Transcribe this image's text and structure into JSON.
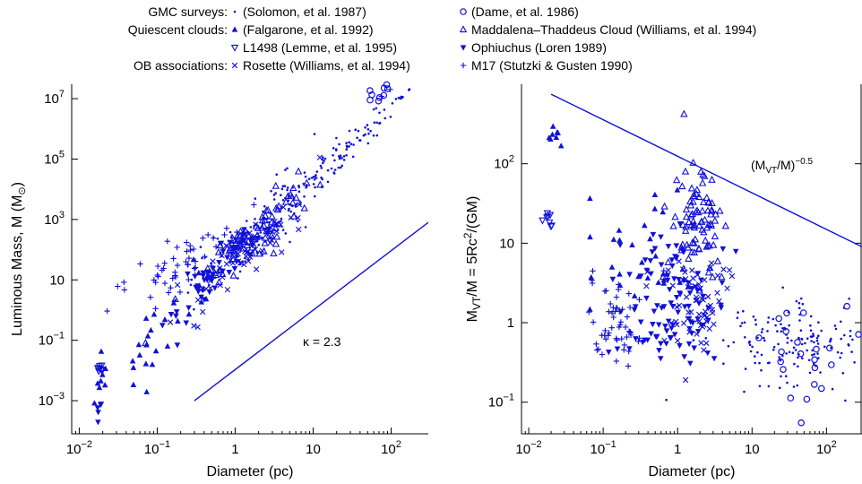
{
  "legend": {
    "groups": [
      {
        "title": "GMC surveys:",
        "entries": [
          {
            "marker": "dot",
            "label": "(Solomon, et al. 1987)"
          },
          {
            "marker": "circle",
            "label": "(Dame, et al. 1986)"
          }
        ]
      },
      {
        "title": "Quiescent clouds:",
        "entries": [
          {
            "marker": "triangle-up-filled",
            "label": "(Falgarone, et al. 1992)"
          },
          {
            "marker": "triangle-up-open",
            "label": "Maddalena–Thaddeus Cloud (Williams, et al. 1994)"
          },
          {
            "marker": "triangle-down-open",
            "label": "L1498 (Lemme, et al. 1995)"
          },
          {
            "marker": "triangle-down-filled",
            "label": "Ophiuchus (Loren 1989)"
          }
        ]
      },
      {
        "title": "OB associations:",
        "entries": [
          {
            "marker": "cross-x",
            "label": "Rosette (Williams, et al. 1994)"
          },
          {
            "marker": "plus",
            "label": "M17 (Stutzki & Gusten 1990)"
          }
        ]
      }
    ]
  },
  "colors": {
    "marker": "#1010d8",
    "axis": "#000000"
  },
  "chart_data": [
    {
      "type": "scatter",
      "xlabel": "Diameter (pc)",
      "ylabel": "Luminous Mass, M (M⊙)",
      "xscale": "log",
      "yscale": "log",
      "xlim": [
        0.008,
        300
      ],
      "ylim": [
        8e-05,
        30000000
      ],
      "xticks": [
        {
          "value": 0.01,
          "label": "10",
          "exp": "−2"
        },
        {
          "value": 0.1,
          "label": "10",
          "exp": "−1"
        },
        {
          "value": 1,
          "label": "1",
          "exp": ""
        },
        {
          "value": 10,
          "label": "10",
          "exp": ""
        },
        {
          "value": 100,
          "label": "10",
          "exp": "2"
        }
      ],
      "yticks": [
        {
          "value": 0.001,
          "label": "10",
          "exp": "−3"
        },
        {
          "value": 0.1,
          "label": "10",
          "exp": "−1"
        },
        {
          "value": 10,
          "label": "10",
          "exp": ""
        },
        {
          "value": 1000,
          "label": "10",
          "exp": "3"
        },
        {
          "value": 100000,
          "label": "10",
          "exp": "5"
        },
        {
          "value": 10000000,
          "label": "10",
          "exp": "7"
        }
      ],
      "line": {
        "label": "κ = 2.3",
        "points": [
          [
            0.3,
            0.001
          ],
          [
            300,
            800
          ]
        ]
      },
      "series": [
        {
          "marker": "dot",
          "clusters": [
            {
              "cx": 1.8,
              "cy": 2.6,
              "sx": 0.45,
              "sy": 0.55,
              "n": 130,
              "slope": 2.3
            },
            {
              "cx": 30,
              "cy": 5.4,
              "sx": 0.45,
              "sy": 0.25,
              "n": 90,
              "slope": 2.3
            }
          ]
        },
        {
          "marker": "circle",
          "clusters": [
            {
              "cx": 80,
              "cy": 7.3,
              "sx": 0.15,
              "sy": 0.2,
              "n": 12,
              "slope": 2.3
            }
          ]
        },
        {
          "marker": "triangle-up-filled",
          "clusters": [
            {
              "cx": 0.15,
              "cy": -0.2,
              "sx": 0.35,
              "sy": 0.6,
              "n": 28,
              "slope": 2.3
            },
            {
              "cx": 0.018,
              "cy": -2.6,
              "sx": 0.05,
              "sy": 0.6,
              "n": 6,
              "slope": 0
            }
          ]
        },
        {
          "marker": "triangle-up-open",
          "clusters": [
            {
              "cx": 1.8,
              "cy": 2.4,
              "sx": 0.35,
              "sy": 0.45,
              "n": 80,
              "slope": 2.3
            }
          ]
        },
        {
          "marker": "triangle-down-open",
          "clusters": [
            {
              "cx": 0.018,
              "cy": -1.9,
              "sx": 0.04,
              "sy": 0.15,
              "n": 8,
              "slope": 0
            }
          ]
        },
        {
          "marker": "triangle-down-filled",
          "clusters": [
            {
              "cx": 0.5,
              "cy": 1.1,
              "sx": 0.35,
              "sy": 0.5,
              "n": 45,
              "slope": 2.3
            },
            {
              "cx": 0.018,
              "cy": -3.3,
              "sx": 0.03,
              "sy": 0.15,
              "n": 5,
              "slope": 0
            }
          ]
        },
        {
          "marker": "cross-x",
          "clusters": [
            {
              "cx": 1.2,
              "cy": 1.8,
              "sx": 0.35,
              "sy": 0.45,
              "n": 70,
              "slope": 2.3
            }
          ]
        },
        {
          "marker": "plus",
          "clusters": [
            {
              "cx": 0.25,
              "cy": 1.7,
              "sx": 0.4,
              "sy": 0.45,
              "n": 55,
              "slope": 1.5
            },
            {
              "cx": 80,
              "cy": 7.0,
              "sx": 0.1,
              "sy": 0.3,
              "n": 4,
              "slope": 2.3
            }
          ]
        }
      ]
    },
    {
      "type": "scatter",
      "xlabel": "Diameter (pc)",
      "ylabel": "M_VT/M = 5Rc²/(GM)",
      "xscale": "log",
      "yscale": "log",
      "xlim": [
        0.008,
        300
      ],
      "ylim": [
        0.04,
        1000
      ],
      "xticks": [
        {
          "value": 0.01,
          "label": "10",
          "exp": "−2"
        },
        {
          "value": 0.1,
          "label": "10",
          "exp": "−1"
        },
        {
          "value": 1,
          "label": "1",
          "exp": ""
        },
        {
          "value": 10,
          "label": "10",
          "exp": ""
        },
        {
          "value": 100,
          "label": "10",
          "exp": "2"
        }
      ],
      "yticks": [
        {
          "value": 0.1,
          "label": "10",
          "exp": "−1"
        },
        {
          "value": 1,
          "label": "1",
          "exp": ""
        },
        {
          "value": 10,
          "label": "10",
          "exp": ""
        },
        {
          "value": 100,
          "label": "10",
          "exp": "2"
        }
      ],
      "line": {
        "label": "(M_VT/M)^−0.5",
        "points": [
          [
            0.02,
            750
          ],
          [
            300,
            9
          ]
        ]
      },
      "series": [
        {
          "marker": "dot",
          "clusters": [
            {
              "cx": 30,
              "cy": -0.3,
              "sx": 0.5,
              "sy": 0.25,
              "n": 150,
              "slope": 0
            }
          ]
        },
        {
          "marker": "circle",
          "clusters": [
            {
              "cx": 60,
              "cy": -0.45,
              "sx": 0.35,
              "sy": 0.3,
              "n": 22,
              "slope": 0
            }
          ]
        },
        {
          "marker": "triangle-up-filled",
          "clusters": [
            {
              "cx": 0.3,
              "cy": 0.9,
              "sx": 0.35,
              "sy": 0.35,
              "n": 30,
              "slope": 0
            },
            {
              "cx": 0.022,
              "cy": 2.3,
              "sx": 0.06,
              "sy": 0.1,
              "n": 8,
              "slope": 0
            }
          ]
        },
        {
          "marker": "triangle-up-open",
          "clusters": [
            {
              "cx": 1.8,
              "cy": 1.3,
              "sx": 0.2,
              "sy": 0.4,
              "n": 90,
              "slope": 0
            }
          ]
        },
        {
          "marker": "triangle-down-open",
          "clusters": [
            {
              "cx": 0.018,
              "cy": 1.3,
              "sx": 0.04,
              "sy": 0.15,
              "n": 8,
              "slope": 0
            }
          ]
        },
        {
          "marker": "triangle-down-filled",
          "clusters": [
            {
              "cx": 0.8,
              "cy": 0.45,
              "sx": 0.3,
              "sy": 0.35,
              "n": 60,
              "slope": 0
            },
            {
              "cx": 0.8,
              "cy": 0.0,
              "sx": 0.3,
              "sy": 0.25,
              "n": 40,
              "slope": 0
            }
          ]
        },
        {
          "marker": "cross-x",
          "clusters": [
            {
              "cx": 1.8,
              "cy": 0.2,
              "sx": 0.25,
              "sy": 0.3,
              "n": 70,
              "slope": 0
            }
          ]
        },
        {
          "marker": "plus",
          "clusters": [
            {
              "cx": 0.15,
              "cy": 0.0,
              "sx": 0.2,
              "sy": 0.25,
              "n": 55,
              "slope": 0
            }
          ]
        }
      ]
    }
  ]
}
